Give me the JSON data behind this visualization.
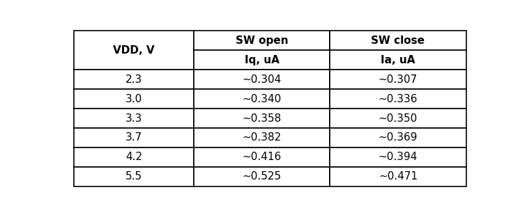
{
  "col1_header1": "VDD, V",
  "col2_header1": "SW open",
  "col3_header1": "SW close",
  "col2_header2": "Iq, uA",
  "col3_header2": "Ia, uA",
  "rows": [
    [
      "2.3",
      "~0.304",
      "~0.307"
    ],
    [
      "3.0",
      "~0.340",
      "~0.336"
    ],
    [
      "3.3",
      "~0.358",
      "~0.350"
    ],
    [
      "3.7",
      "~0.382",
      "~0.369"
    ],
    [
      "4.2",
      "~0.416",
      "~0.394"
    ],
    [
      "5.5",
      "~0.525",
      "~0.471"
    ]
  ],
  "background_color": "#ffffff",
  "border_color": "#000000",
  "text_color": "#000000",
  "header_fontsize": 11,
  "cell_fontsize": 11,
  "fig_width": 7.56,
  "fig_height": 3.09,
  "dpi": 100
}
